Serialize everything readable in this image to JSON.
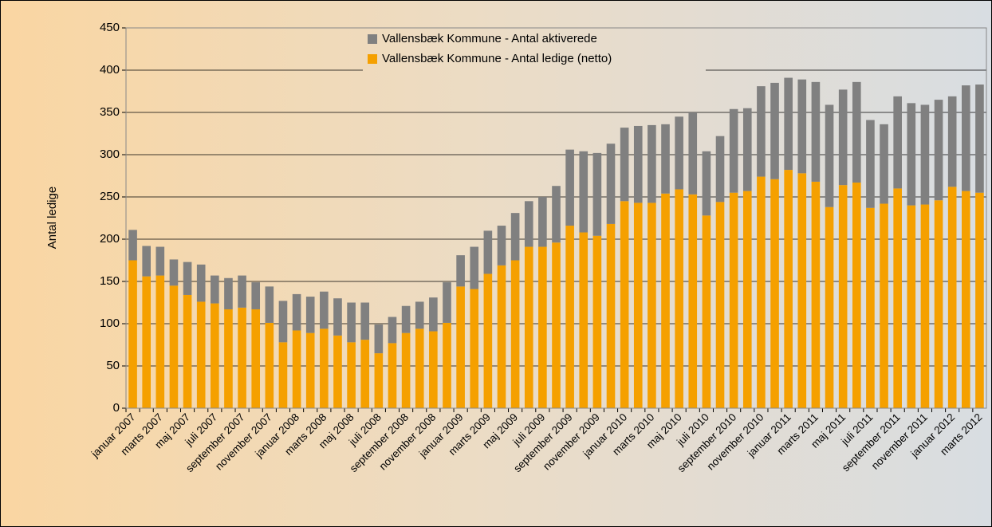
{
  "chart_data": {
    "type": "stacked_bar",
    "ylabel": "Antal ledige",
    "categories": [
      "januar 2007",
      null,
      "marts 2007",
      null,
      "maj 2007",
      null,
      "juli 2007",
      null,
      "september 2007",
      null,
      "november 2007",
      null,
      "januar 2008",
      null,
      "marts 2008",
      null,
      "maj 2008",
      null,
      "juli 2008",
      null,
      "september 2008",
      null,
      "november 2008",
      null,
      "januar 2009",
      null,
      "marts 2009",
      null,
      "maj 2009",
      null,
      "juli 2009",
      null,
      "september 2009",
      null,
      "november 2009",
      null,
      "januar 2010",
      null,
      "marts 2010",
      null,
      "maj 2010",
      null,
      "juli 2010",
      null,
      "september 2010",
      null,
      "november 2010",
      null,
      "januar 2011",
      null,
      "marts 2011",
      null,
      "maj 2011",
      null,
      "juli 2011",
      null,
      "september 2011",
      null,
      "november 2011",
      null,
      "januar 2012",
      null,
      "marts 2012"
    ],
    "series": [
      {
        "name": "Vallensbæk Kommune - Antal aktiverede",
        "color": "#808080",
        "values": [
          36,
          36,
          34,
          31,
          39,
          44,
          33,
          37,
          38,
          32,
          43,
          49,
          43,
          43,
          44,
          44,
          47,
          44,
          34,
          31,
          32,
          32,
          40,
          48,
          37,
          50,
          51,
          47,
          56,
          54,
          59,
          67,
          90,
          96,
          98,
          95,
          87,
          91,
          92,
          82,
          86,
          97,
          76,
          78,
          99,
          98,
          107,
          114,
          109,
          111,
          118,
          121,
          113,
          119,
          104,
          94,
          109,
          121,
          118,
          119,
          107,
          125,
          128
        ]
      },
      {
        "name": "Vallensbæk Kommune - Antal ledige (netto)",
        "color": "#f5a000",
        "values": [
          175,
          156,
          157,
          145,
          134,
          126,
          124,
          117,
          119,
          117,
          101,
          78,
          92,
          89,
          94,
          86,
          78,
          81,
          65,
          77,
          89,
          94,
          91,
          101,
          144,
          141,
          159,
          169,
          175,
          191,
          191,
          196,
          216,
          208,
          204,
          218,
          245,
          243,
          243,
          254,
          259,
          253,
          228,
          244,
          255,
          257,
          274,
          271,
          282,
          278,
          268,
          238,
          264,
          267,
          237,
          242,
          260,
          240,
          241,
          246,
          262,
          257,
          255
        ]
      }
    ],
    "stack_order": "bottom_is_last",
    "ylim": [
      0,
      450
    ],
    "yticks": [
      0,
      50,
      100,
      150,
      200,
      250,
      300,
      350,
      400,
      450
    ],
    "grid": true,
    "legend": "top"
  }
}
